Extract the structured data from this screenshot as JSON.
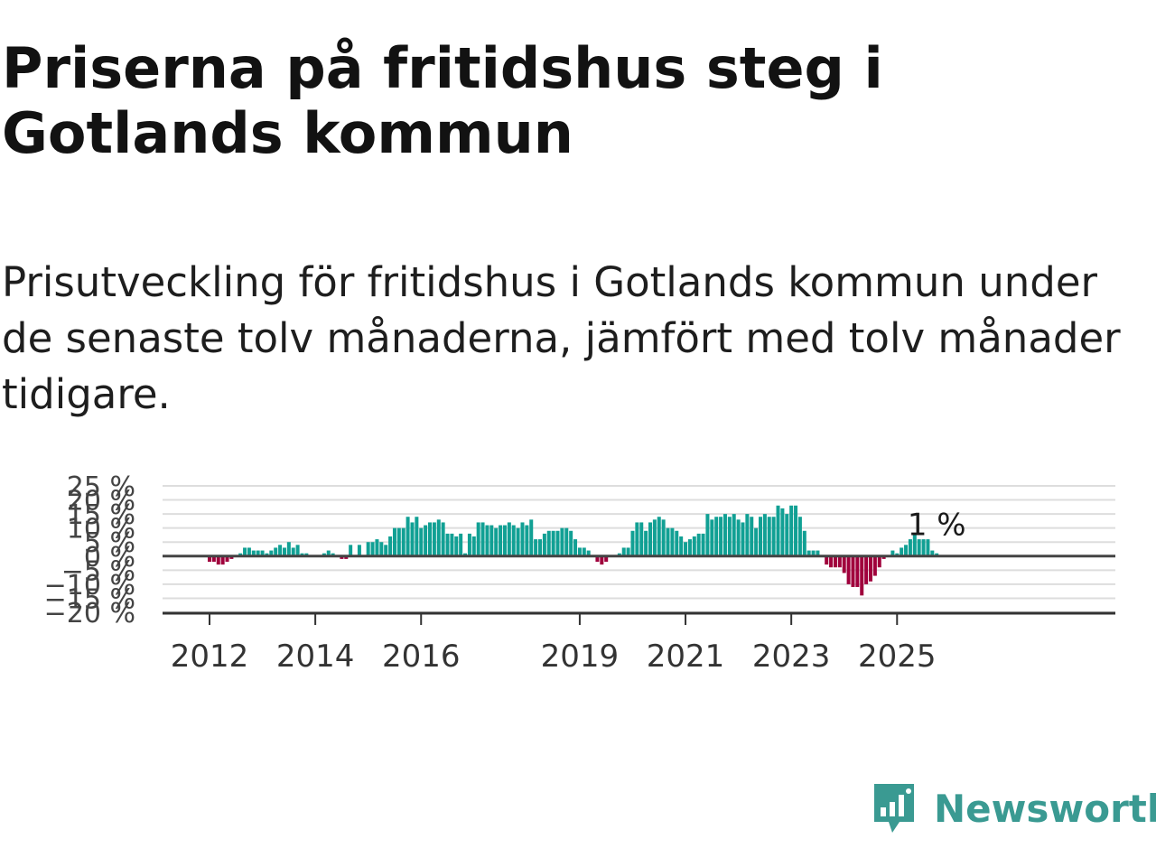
{
  "header": {
    "title": "Priserna på fritidshus steg i Gotlands kommun",
    "subtitle": "Prisutveckling för fritidshus i Gotlands kommun under de senaste tolv månaderna, jämfört med tolv månader tidigare."
  },
  "brand": {
    "name": "Newsworthy",
    "color": "#3a9a92"
  },
  "chart_data": {
    "type": "bar",
    "x_start": "2012-01",
    "frequency": "monthly",
    "y_ticks": [
      25,
      20,
      15,
      10,
      5,
      0,
      -5,
      -10,
      -15,
      -20
    ],
    "y_tick_labels": [
      "25 %",
      "20 %",
      "15 %",
      "10 %",
      "5 %",
      "0 %",
      "−5 %",
      "−10 %",
      "−15 %",
      "−20 %"
    ],
    "ylim": [
      -20,
      25
    ],
    "x_tick_labels": [
      "2012",
      "2014",
      "2016",
      "2019",
      "2021",
      "2023",
      "2025"
    ],
    "x_tick_years": [
      2012,
      2014,
      2016,
      2019,
      2021,
      2023,
      2025
    ],
    "annotation": "1 %",
    "positive_color": "#11a094",
    "negative_color": "#a0003c",
    "grid": true,
    "values": [
      -2,
      -2,
      -3,
      -3,
      -2,
      -1,
      0,
      1,
      3,
      3,
      2,
      2,
      2,
      1,
      2,
      3,
      4,
      3,
      5,
      3,
      4,
      1,
      1,
      0,
      0,
      0,
      1,
      2,
      1,
      0,
      -1,
      -1,
      4,
      0,
      4,
      0,
      5,
      5,
      6,
      5,
      4,
      7,
      10,
      10,
      10,
      14,
      12,
      14,
      10,
      11,
      12,
      12,
      13,
      12,
      8,
      8,
      7,
      8,
      1,
      8,
      7,
      12,
      12,
      11,
      11,
      10,
      11,
      11,
      12,
      11,
      10,
      12,
      11,
      13,
      6,
      6,
      8,
      9,
      9,
      9,
      10,
      10,
      9,
      6,
      3,
      3,
      2,
      0,
      -2,
      -3,
      -2,
      0,
      0,
      1,
      3,
      3,
      9,
      12,
      12,
      9,
      12,
      13,
      14,
      13,
      10,
      10,
      9,
      7,
      5,
      6,
      7,
      8,
      8,
      15,
      13,
      14,
      14,
      15,
      14,
      15,
      13,
      12,
      15,
      14,
      10,
      14,
      15,
      14,
      14,
      18,
      17,
      15,
      18,
      18,
      14,
      9,
      2,
      2,
      2,
      0,
      -3,
      -4,
      -4,
      -4,
      -6,
      -10,
      -11,
      -11,
      -14,
      -10,
      -9,
      -7,
      -4,
      -1,
      0,
      2,
      1,
      3,
      4,
      6,
      8,
      6,
      6,
      6,
      2,
      1
    ]
  }
}
